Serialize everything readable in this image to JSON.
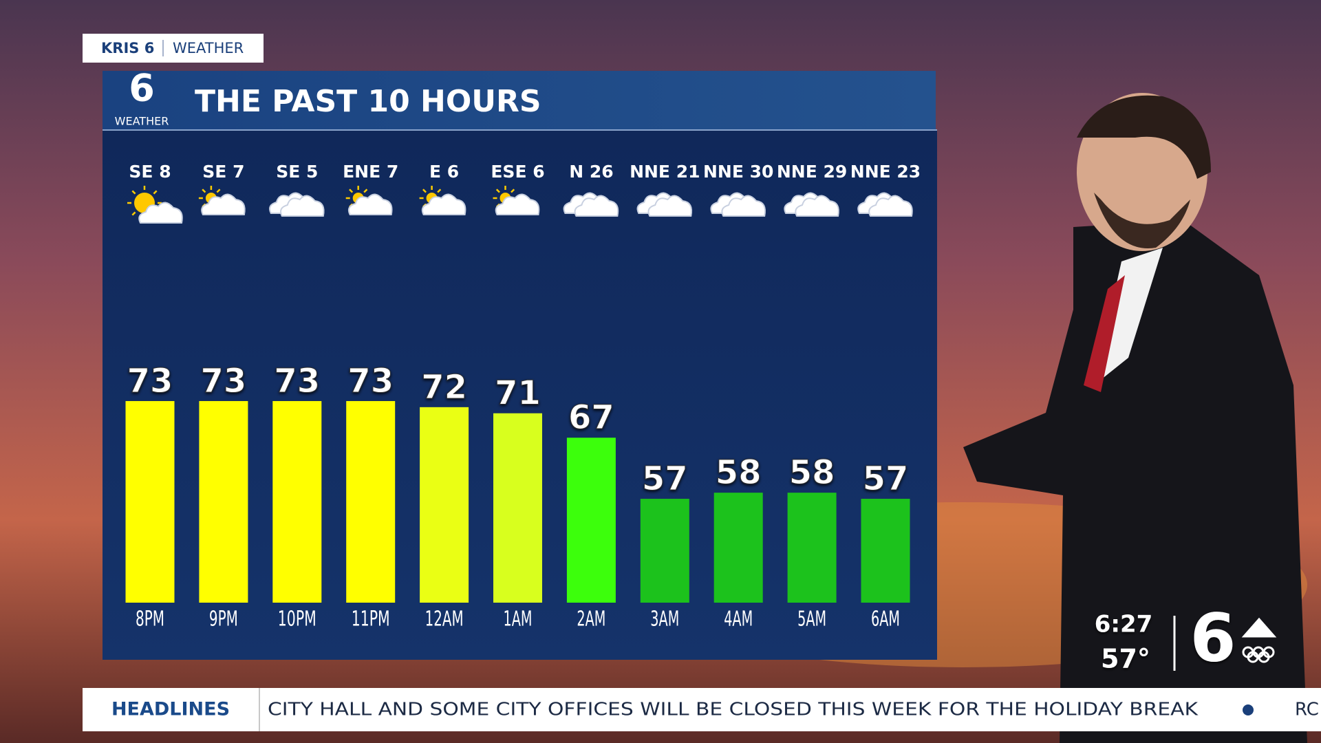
{
  "tag": {
    "station": "KRIS 6",
    "section": "WEATHER"
  },
  "logo": {
    "number": "6",
    "label": "WEATHER"
  },
  "chart_data": {
    "type": "bar",
    "title": "THE PAST 10 HOURS",
    "categories": [
      "8PM",
      "9PM",
      "10PM",
      "11PM",
      "12AM",
      "1AM",
      "2AM",
      "3AM",
      "4AM",
      "5AM",
      "6AM"
    ],
    "values": [
      73,
      73,
      73,
      73,
      72,
      71,
      67,
      57,
      58,
      58,
      57
    ],
    "colors": [
      "#ffff00",
      "#ffff00",
      "#ffff00",
      "#ffff00",
      "#eaff14",
      "#d8ff1e",
      "#3cff0c",
      "#1cc21c",
      "#1cc21c",
      "#1cc21c",
      "#1cc21c"
    ],
    "wind": [
      "SE 8",
      "SE 7",
      "SE 5",
      "ENE 7",
      "E 6",
      "ESE 6",
      "N 26",
      "NNE 21",
      "NNE 30",
      "NNE 29",
      "NNE 23"
    ],
    "ylim": [
      40,
      90
    ]
  },
  "ticker": {
    "label": "HEADLINES",
    "text": "CITY HALL AND SOME CITY OFFICES WILL BE CLOSED THIS WEEK FOR THE HOLIDAY BREAK",
    "next": "RC"
  },
  "clock": {
    "time": "6:27",
    "temperature": "57°"
  },
  "station_logo": "6"
}
